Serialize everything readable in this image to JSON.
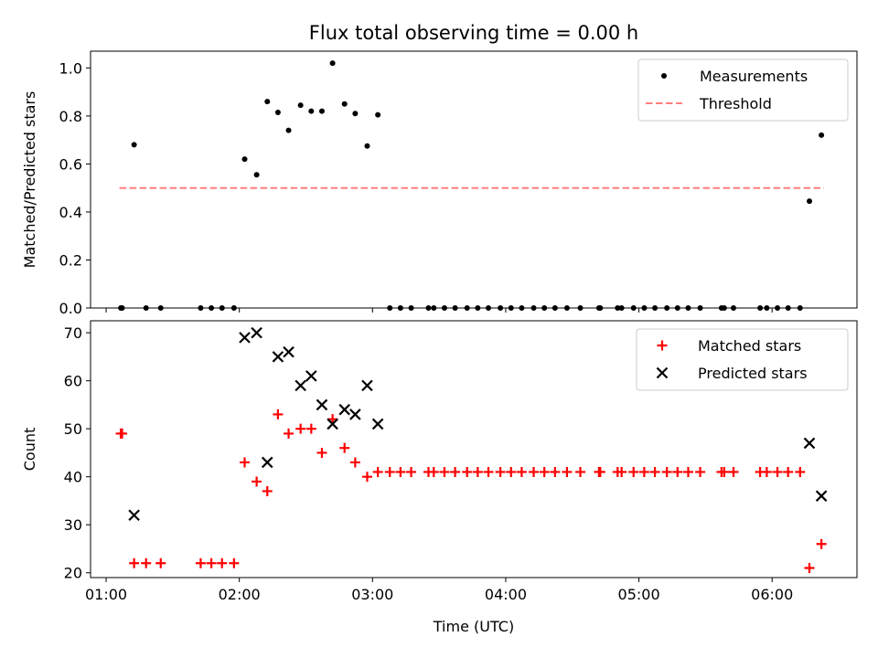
{
  "chart_data": [
    {
      "type": "scatter",
      "title": "Flux total observing time = 0.00 h",
      "xlabel": "",
      "ylabel": "Matched/Predicted stars",
      "x_unit": "hours UTC",
      "xlim": [
        0.883,
        6.637
      ],
      "ylim": [
        0.0,
        1.07
      ],
      "yticks": [
        0.0,
        0.2,
        0.4,
        0.6,
        0.8,
        1.0
      ],
      "ytick_labels": [
        "0.0",
        "0.2",
        "0.4",
        "0.6",
        "0.8",
        "1.0"
      ],
      "series": [
        {
          "name": "Measurements",
          "color": "#000000",
          "marker": "dot",
          "points": [
            [
              1.11,
              0.0
            ],
            [
              1.12,
              0.0
            ],
            [
              1.21,
              0.68
            ],
            [
              1.3,
              0.0
            ],
            [
              1.41,
              0.0
            ],
            [
              1.71,
              0.0
            ],
            [
              1.79,
              0.0
            ],
            [
              1.87,
              0.0
            ],
            [
              1.96,
              0.0
            ],
            [
              2.04,
              0.62
            ],
            [
              2.13,
              0.555
            ],
            [
              2.21,
              0.86
            ],
            [
              2.29,
              0.815
            ],
            [
              2.37,
              0.74
            ],
            [
              2.46,
              0.845
            ],
            [
              2.54,
              0.82
            ],
            [
              2.62,
              0.82
            ],
            [
              2.7,
              1.02
            ],
            [
              2.79,
              0.85
            ],
            [
              2.87,
              0.81
            ],
            [
              2.96,
              0.675
            ],
            [
              3.04,
              0.805
            ],
            [
              3.13,
              0.0
            ],
            [
              3.21,
              0.0
            ],
            [
              3.29,
              0.0
            ],
            [
              3.42,
              0.0
            ],
            [
              3.46,
              0.0
            ],
            [
              3.54,
              0.0
            ],
            [
              3.62,
              0.0
            ],
            [
              3.71,
              0.0
            ],
            [
              3.79,
              0.0
            ],
            [
              3.87,
              0.0
            ],
            [
              3.96,
              0.0
            ],
            [
              4.04,
              0.0
            ],
            [
              4.12,
              0.0
            ],
            [
              4.21,
              0.0
            ],
            [
              4.29,
              0.0
            ],
            [
              4.37,
              0.0
            ],
            [
              4.46,
              0.0
            ],
            [
              4.56,
              0.0
            ],
            [
              4.7,
              0.0
            ],
            [
              4.71,
              0.0
            ],
            [
              4.84,
              0.0
            ],
            [
              4.87,
              0.0
            ],
            [
              4.96,
              0.0
            ],
            [
              5.04,
              0.0
            ],
            [
              5.12,
              0.0
            ],
            [
              5.21,
              0.0
            ],
            [
              5.29,
              0.0
            ],
            [
              5.37,
              0.0
            ],
            [
              5.46,
              0.0
            ],
            [
              5.62,
              0.0
            ],
            [
              5.64,
              0.0
            ],
            [
              5.71,
              0.0
            ],
            [
              5.91,
              0.0
            ],
            [
              5.96,
              0.0
            ],
            [
              6.04,
              0.0
            ],
            [
              6.12,
              0.0
            ],
            [
              6.21,
              0.0
            ],
            [
              6.28,
              0.445
            ],
            [
              6.37,
              0.72
            ]
          ]
        },
        {
          "name": "Threshold",
          "color": "#ff7f7f",
          "marker": "dashed-line",
          "points": [
            [
              1.1,
              0.5
            ],
            [
              6.39,
              0.5
            ]
          ]
        }
      ],
      "legend": "top-right"
    },
    {
      "type": "scatter",
      "title": "",
      "xlabel": "Time (UTC)",
      "ylabel": "Count",
      "x_unit": "hours UTC",
      "xlim": [
        0.883,
        6.637
      ],
      "ylim": [
        19.0,
        72.5
      ],
      "yticks": [
        20,
        30,
        40,
        50,
        60,
        70
      ],
      "ytick_labels": [
        "20",
        "30",
        "40",
        "50",
        "60",
        "70"
      ],
      "xticks": [
        1,
        2,
        3,
        4,
        5,
        6
      ],
      "xtick_labels": [
        "01:00",
        "02:00",
        "03:00",
        "04:00",
        "05:00",
        "06:00"
      ],
      "series": [
        {
          "name": "Matched stars",
          "color": "#ff0000",
          "marker": "plus",
          "points": [
            [
              1.11,
              49
            ],
            [
              1.12,
              49
            ],
            [
              1.21,
              22
            ],
            [
              1.3,
              22
            ],
            [
              1.41,
              22
            ],
            [
              1.71,
              22
            ],
            [
              1.79,
              22
            ],
            [
              1.87,
              22
            ],
            [
              1.96,
              22
            ],
            [
              2.04,
              43
            ],
            [
              2.13,
              39
            ],
            [
              2.21,
              37
            ],
            [
              2.29,
              53
            ],
            [
              2.37,
              49
            ],
            [
              2.46,
              50
            ],
            [
              2.54,
              50
            ],
            [
              2.62,
              45
            ],
            [
              2.7,
              52
            ],
            [
              2.79,
              46
            ],
            [
              2.87,
              43
            ],
            [
              2.96,
              40
            ],
            [
              3.04,
              41
            ],
            [
              3.13,
              41
            ],
            [
              3.21,
              41
            ],
            [
              3.29,
              41
            ],
            [
              3.42,
              41
            ],
            [
              3.46,
              41
            ],
            [
              3.54,
              41
            ],
            [
              3.62,
              41
            ],
            [
              3.71,
              41
            ],
            [
              3.79,
              41
            ],
            [
              3.87,
              41
            ],
            [
              3.96,
              41
            ],
            [
              4.04,
              41
            ],
            [
              4.12,
              41
            ],
            [
              4.21,
              41
            ],
            [
              4.29,
              41
            ],
            [
              4.37,
              41
            ],
            [
              4.46,
              41
            ],
            [
              4.56,
              41
            ],
            [
              4.7,
              41
            ],
            [
              4.71,
              41
            ],
            [
              4.84,
              41
            ],
            [
              4.87,
              41
            ],
            [
              4.96,
              41
            ],
            [
              5.04,
              41
            ],
            [
              5.12,
              41
            ],
            [
              5.21,
              41
            ],
            [
              5.29,
              41
            ],
            [
              5.37,
              41
            ],
            [
              5.46,
              41
            ],
            [
              5.62,
              41
            ],
            [
              5.64,
              41
            ],
            [
              5.71,
              41
            ],
            [
              5.91,
              41
            ],
            [
              5.96,
              41
            ],
            [
              6.04,
              41
            ],
            [
              6.12,
              41
            ],
            [
              6.21,
              41
            ],
            [
              6.28,
              21
            ],
            [
              6.37,
              26
            ]
          ]
        },
        {
          "name": "Predicted stars",
          "color": "#000000",
          "marker": "x",
          "points": [
            [
              1.21,
              32
            ],
            [
              2.04,
              69
            ],
            [
              2.13,
              70
            ],
            [
              2.21,
              43
            ],
            [
              2.29,
              65
            ],
            [
              2.37,
              66
            ],
            [
              2.46,
              59
            ],
            [
              2.54,
              61
            ],
            [
              2.62,
              55
            ],
            [
              2.7,
              51
            ],
            [
              2.79,
              54
            ],
            [
              2.87,
              53
            ],
            [
              2.96,
              59
            ],
            [
              3.04,
              51
            ],
            [
              6.28,
              47
            ],
            [
              6.37,
              36
            ]
          ]
        }
      ],
      "legend": "top-right"
    }
  ]
}
